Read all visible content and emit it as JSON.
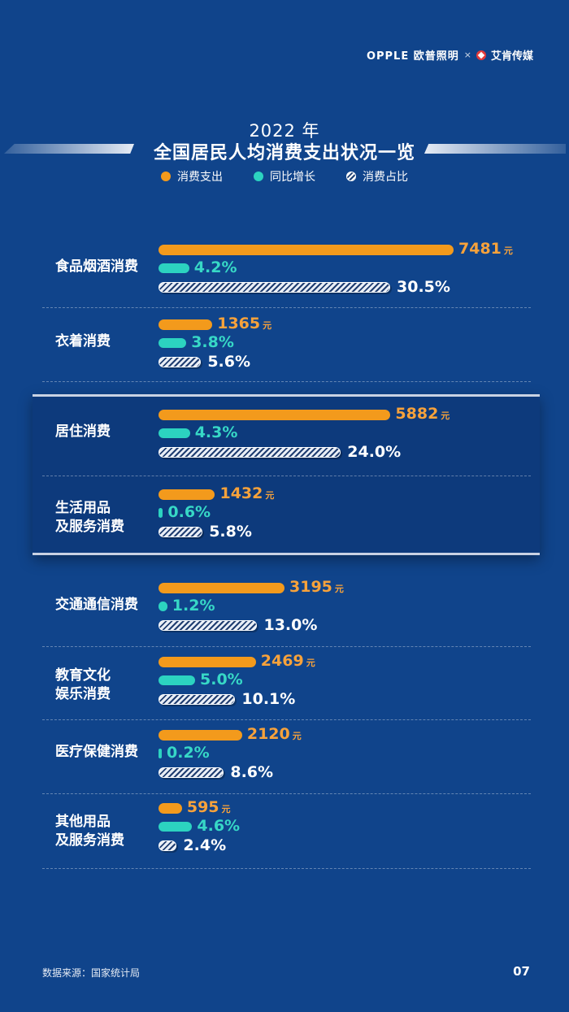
{
  "brand": {
    "logo_a": "OPPLE 欧普照明",
    "separator": "×",
    "logo_b": "艾肯传媒"
  },
  "title": {
    "year": "2022 年",
    "main": "全国居民人均消费支出状况一览"
  },
  "legend": [
    {
      "label": "消费支出",
      "color": "#f39a1c"
    },
    {
      "label": "同比增长",
      "color": "#2cd3c0"
    },
    {
      "label": "消费占比",
      "color": "hatch"
    }
  ],
  "chart_data": {
    "type": "bar",
    "title": "全国居民人均消费支出状况一览",
    "subtitle": "2022 年",
    "categories": [
      "食品烟酒消费",
      "衣着消费",
      "居住消费",
      "生活用品\n及服务消费",
      "交通通信消费",
      "教育文化\n娱乐消费",
      "医疗保健消费",
      "其他用品\n及服务消费"
    ],
    "series": [
      {
        "name": "消费支出",
        "unit": "元",
        "values": [
          7481,
          1365,
          5882,
          1432,
          3195,
          2469,
          2120,
          595
        ]
      },
      {
        "name": "同比增长",
        "unit": "%",
        "values": [
          4.2,
          3.8,
          4.3,
          0.6,
          1.2,
          5.0,
          0.2,
          4.6
        ]
      },
      {
        "name": "消费占比",
        "unit": "%",
        "values": [
          30.5,
          5.6,
          24.0,
          5.8,
          13.0,
          10.1,
          8.6,
          2.4
        ]
      }
    ],
    "labels": {
      "spend": [
        "7481",
        "1365",
        "5882",
        "1432",
        "3195",
        "2469",
        "2120",
        "595"
      ],
      "growth": [
        "4.2%",
        "3.8%",
        "4.3%",
        "0.6%",
        "1.2%",
        "5.0%",
        "0.2%",
        "4.6%"
      ],
      "share": [
        "30.5%",
        "5.6%",
        "24.0%",
        "5.8%",
        "13.0%",
        "10.1%",
        "8.6%",
        "2.4%"
      ]
    },
    "spend_unit": "元",
    "highlighted": [
      "居住消费",
      "生活用品\n及服务消费"
    ],
    "legend": "top-center",
    "grid": false
  },
  "footer": {
    "source": "数据来源：国家统计局",
    "page": "07"
  }
}
